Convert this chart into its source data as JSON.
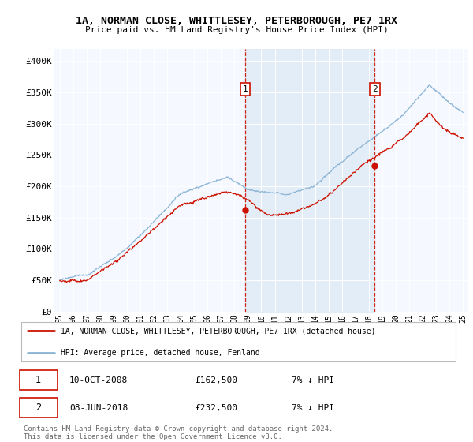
{
  "title": "1A, NORMAN CLOSE, WHITTLESEY, PETERBOROUGH, PE7 1RX",
  "subtitle": "Price paid vs. HM Land Registry's House Price Index (HPI)",
  "ylabel_ticks": [
    "£0",
    "£50K",
    "£100K",
    "£150K",
    "£200K",
    "£250K",
    "£300K",
    "£350K",
    "£400K"
  ],
  "ytick_values": [
    0,
    50000,
    100000,
    150000,
    200000,
    250000,
    300000,
    350000,
    400000
  ],
  "ylim": [
    0,
    420000
  ],
  "xlim_start": 1994.6,
  "xlim_end": 2025.4,
  "sale1_date": 2008.78,
  "sale1_price": 162500,
  "sale2_date": 2018.44,
  "sale2_price": 232500,
  "hpi_color": "#8ab4d4",
  "hpi_fill_color": "#dce9f5",
  "price_color": "#cc1100",
  "background_color": "#f5f8ff",
  "legend1": "1A, NORMAN CLOSE, WHITTLESEY, PETERBOROUGH, PE7 1RX (detached house)",
  "legend2": "HPI: Average price, detached house, Fenland",
  "table_row1": [
    "1",
    "10-OCT-2008",
    "£162,500",
    "7% ↓ HPI"
  ],
  "table_row2": [
    "2",
    "08-JUN-2018",
    "£232,500",
    "7% ↓ HPI"
  ],
  "footnote": "Contains HM Land Registry data © Crown copyright and database right 2024.\nThis data is licensed under the Open Government Licence v3.0."
}
